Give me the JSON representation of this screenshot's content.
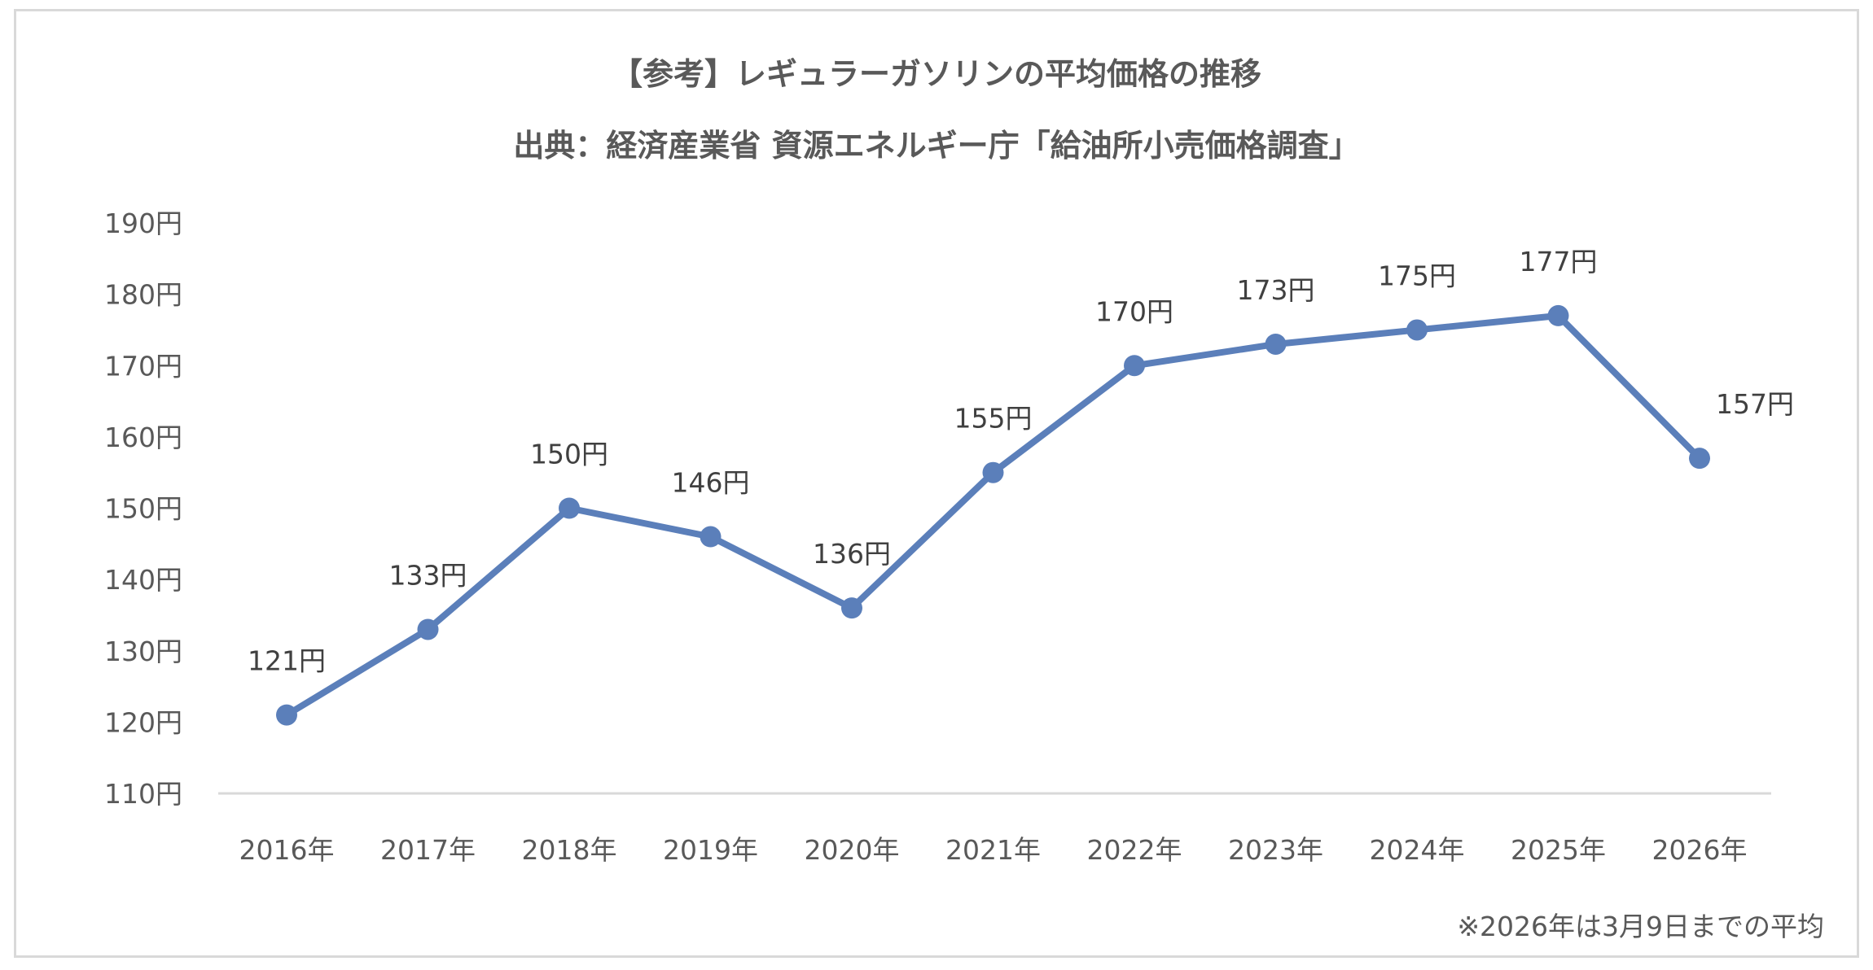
{
  "chart_data": {
    "type": "line",
    "title": "【参考】レギュラーガソリンの平均価格の推移",
    "subtitle": "出典：経済産業省 資源エネルギー庁「給油所小売価格調査」",
    "categories": [
      "2016年",
      "2017年",
      "2018年",
      "2019年",
      "2020年",
      "2021年",
      "2022年",
      "2023年",
      "2024年",
      "2025年",
      "2026年"
    ],
    "values": [
      121,
      133,
      150,
      146,
      136,
      155,
      170,
      173,
      175,
      177,
      157
    ],
    "data_labels": [
      "121円",
      "133円",
      "150円",
      "146円",
      "136円",
      "155円",
      "170円",
      "173円",
      "175円",
      "177円",
      "157円"
    ],
    "y_ticks": [
      "110円",
      "120円",
      "130円",
      "140円",
      "150円",
      "160円",
      "170円",
      "180円",
      "190円"
    ],
    "ylim": [
      110,
      190
    ],
    "grid": false,
    "legend": "none",
    "line_color": "#5b7fba",
    "footnote": "※2026年は3月9日までの平均"
  }
}
